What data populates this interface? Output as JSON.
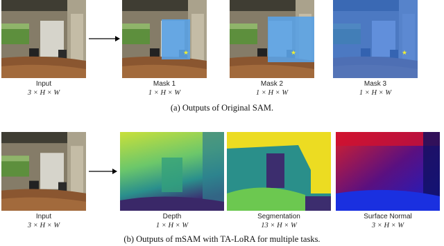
{
  "figure": {
    "panels": [
      {
        "caption": "(a)  Outputs of Original SAM.",
        "items": [
          {
            "label": "Input",
            "shape": "3 × H × W"
          },
          {
            "label": "Mask 1",
            "shape": "1 × H × W"
          },
          {
            "label": "Mask 2",
            "shape": "1 × H × W"
          },
          {
            "label": "Mask 3",
            "shape": "1 × H × W"
          }
        ]
      },
      {
        "caption": "(b)  Outputs of mSAM with TA-LoRA for multiple tasks.",
        "items": [
          {
            "label": "Input",
            "shape": "3 × H × W"
          },
          {
            "label": "Depth",
            "shape": "1 × H × W"
          },
          {
            "label": "Segmentation",
            "shape": "13 × H × W"
          },
          {
            "label": "Surface Normal",
            "shape": "3 × H × W"
          }
        ]
      }
    ]
  }
}
